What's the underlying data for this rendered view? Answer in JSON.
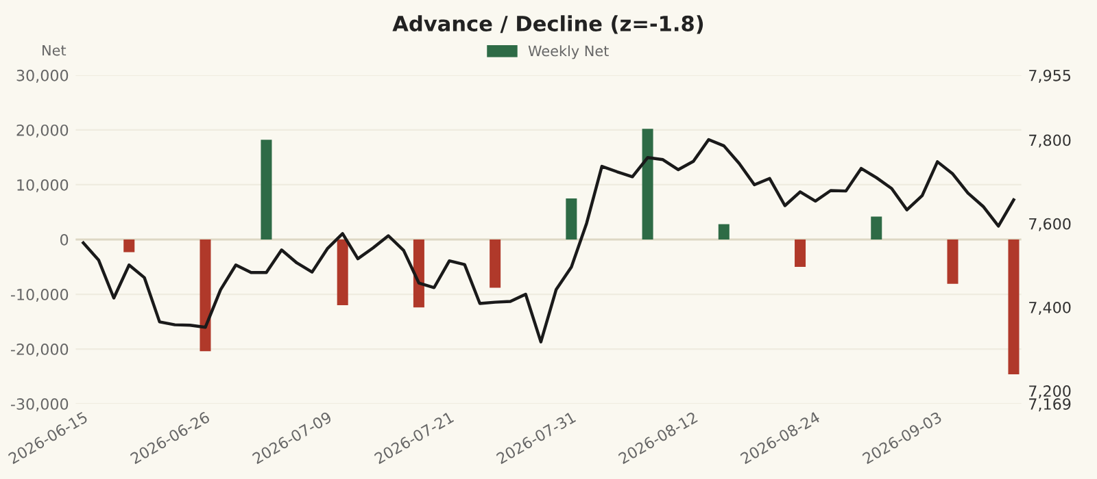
{
  "chart_data": {
    "type": "bar",
    "title": "Advance / Decline (z=-1.8)",
    "ylabel": "Net",
    "categories": [
      "2026-06-15",
      null,
      null,
      null,
      null,
      null,
      null,
      null,
      "2026-06-26",
      null,
      null,
      null,
      null,
      null,
      null,
      null,
      "2026-07-09",
      null,
      null,
      null,
      null,
      null,
      null,
      null,
      "2026-07-21",
      null,
      null,
      null,
      null,
      null,
      null,
      null,
      "2026-07-31",
      null,
      null,
      null,
      null,
      null,
      null,
      null,
      "2026-08-12",
      null,
      null,
      null,
      null,
      null,
      null,
      null,
      "2026-08-24",
      null,
      null,
      null,
      null,
      null,
      null,
      null,
      "2026-09-03",
      null,
      null,
      null,
      null,
      null
    ],
    "series": [
      {
        "name": "Weekly Net",
        "color": "#2e6b46",
        "values": [
          null,
          null,
          null,
          -2300,
          null,
          null,
          null,
          null,
          -20400,
          null,
          null,
          null,
          18200,
          null,
          null,
          null,
          null,
          -12000,
          null,
          null,
          null,
          null,
          -12400,
          null,
          null,
          null,
          null,
          -8800,
          null,
          null,
          null,
          null,
          7500,
          null,
          null,
          null,
          null,
          20200,
          null,
          null,
          null,
          null,
          2800,
          null,
          null,
          null,
          null,
          -5000,
          null,
          null,
          null,
          null,
          4200,
          null,
          null,
          null,
          null,
          -8100,
          null,
          null,
          null,
          -24600
        ],
        "colors": [
          null,
          null,
          null,
          "#b0392a",
          null,
          null,
          null,
          null,
          "#b0392a",
          null,
          null,
          null,
          "#2e6b46",
          null,
          null,
          null,
          null,
          "#b0392a",
          null,
          null,
          null,
          null,
          "#b0392a",
          null,
          null,
          null,
          null,
          "#b0392a",
          null,
          null,
          null,
          null,
          "#2e6b46",
          null,
          null,
          null,
          null,
          "#2e6b46",
          null,
          null,
          null,
          null,
          "#2e6b46",
          null,
          null,
          null,
          null,
          "#b0392a",
          null,
          null,
          null,
          null,
          "#2e6b46",
          null,
          null,
          null,
          null,
          "#b0392a",
          null,
          null,
          null,
          "#b0392a"
        ]
      },
      {
        "type": "line",
        "axis": "y2",
        "color": "#1a1a1a",
        "values": [
          7554,
          7513,
          7422,
          7501,
          7471,
          7365,
          7358,
          7357,
          7352,
          7442,
          7501,
          7483,
          7483,
          7537,
          7506,
          7484,
          7540,
          7576,
          7516,
          7542,
          7571,
          7536,
          7458,
          7447,
          7511,
          7502,
          7409,
          7412,
          7414,
          7431,
          7317,
          7442,
          7496,
          7601,
          7737,
          7724,
          7712,
          7758,
          7753,
          7729,
          7749,
          7801,
          7786,
          7744,
          7693,
          7708,
          7643,
          7676,
          7654,
          7679,
          7678,
          7732,
          7710,
          7684,
          7633,
          7667,
          7748,
          7719,
          7673,
          7641,
          7594,
          7657
        ]
      }
    ],
    "ylim": [
      -30000,
      30000
    ],
    "yticks": [
      {
        "value": -30000,
        "label": "-30,000"
      },
      {
        "value": -20000,
        "label": "-20,000"
      },
      {
        "value": -10000,
        "label": "-10,000"
      },
      0,
      {
        "value": 10000,
        "label": "10,000"
      },
      {
        "value": 20000,
        "label": "20,000"
      },
      {
        "value": 30000,
        "label": "30,000"
      }
    ],
    "y2lim": [
      7169,
      7955
    ],
    "y2ticks": [
      {
        "value": 7169,
        "label": "7,169"
      },
      {
        "value": 7200,
        "label": "7,200"
      },
      {
        "value": 7400,
        "label": "7,400"
      },
      {
        "value": 7600,
        "label": "7,600"
      },
      {
        "value": 7800,
        "label": "7,800"
      },
      {
        "value": 7955,
        "label": "7,955"
      }
    ],
    "ref_lines": [
      {
        "axis": "y",
        "value": 0,
        "color": "#ddd8c4"
      }
    ],
    "grid": "y",
    "legend": "top"
  }
}
